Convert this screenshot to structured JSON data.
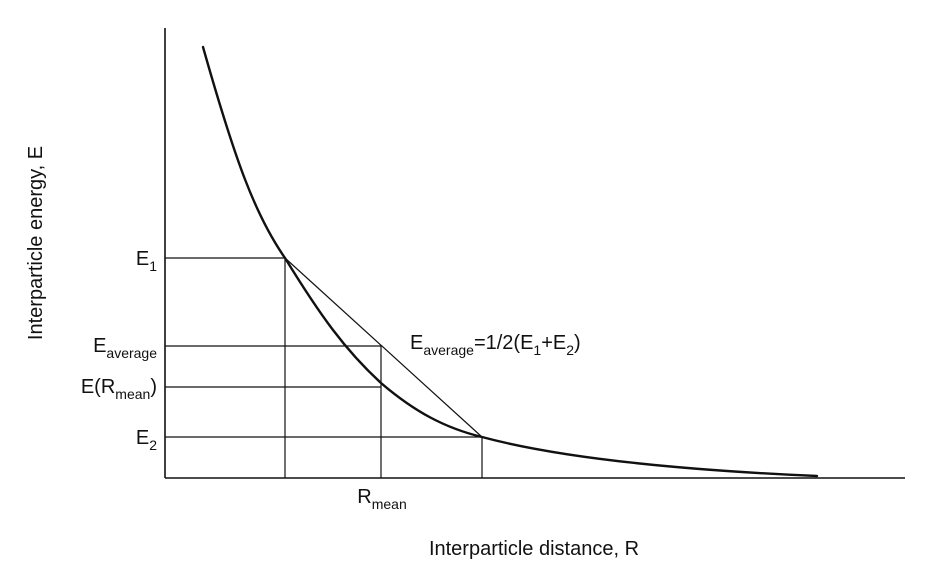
{
  "axes": {
    "x_title": "Interparticle distance, R",
    "y_title": "Interparticle energy, E"
  },
  "labels": {
    "e1": {
      "main": "E",
      "sub": "1"
    },
    "e_average": {
      "main": "E",
      "sub": "average"
    },
    "e_r_mean": {
      "pre": "E(R",
      "sub": "mean",
      "post": ")"
    },
    "e2": {
      "main": "E",
      "sub": "2"
    },
    "r_mean": {
      "main": "R",
      "sub": "mean"
    }
  },
  "equation": {
    "lhs_main": "E",
    "lhs_sub": "average",
    "mid": "=1/2(E",
    "sub1": "1",
    "plus": "+E",
    "sub2": "2",
    "close": ")"
  }
}
